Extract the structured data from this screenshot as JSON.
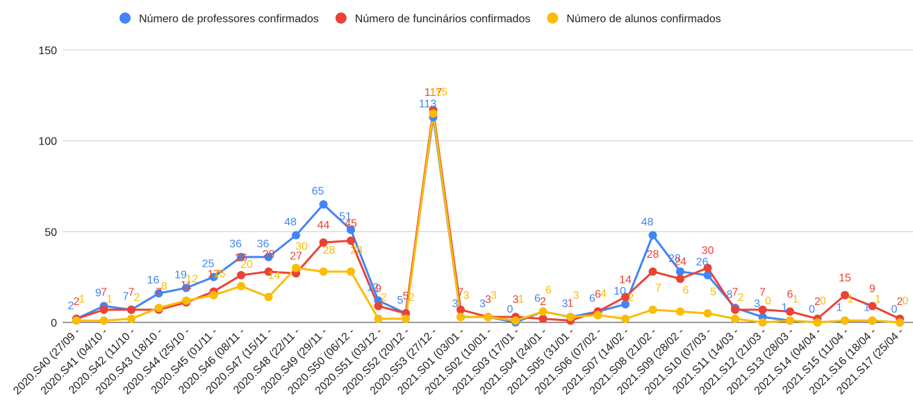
{
  "chart_data": {
    "type": "line",
    "categories": [
      "2020.S40 (27/09 -",
      "2020.S41 (04/10 -",
      "2020.S42 (11/10 -",
      "2020.S43 (18/10 -",
      "2020.S44 (25/10 -",
      "2020.S45 (01/11 -",
      "2020.S46 (08/11 -",
      "2020.S47 (15/11 -",
      "2020.S48 (22/11 -",
      "2020.S49 (29/11 -",
      "2020.S50 (06/12 -",
      "2020.S51 (03/12 -",
      "2020.S52 (20/12 -",
      "2020.S53 (27/12 -",
      "2021.S01 (03/01 -",
      "2021.S02 (10/01 -",
      "2021.S03 (17/01 -",
      "2021.S04 (24/01 -",
      "2021.S05 (31/01 -",
      "2021.S06 (07/02 -",
      "2021.S07 (14/02 -",
      "2021.S08 (21/02 -",
      "2021.S09 (28/02 -",
      "2021.S10 (07/03 -",
      "2021.S11 (14/03 -",
      "2021.S12 (21/03 -",
      "2021.S13 (28/03 -",
      "2021.S14 (04/04 -",
      "2021.S15 (11/04 -",
      "2021.S16 (18/04 -",
      "2021.S17 (25/04 -"
    ],
    "series": [
      {
        "name": "Número de professores confirmados",
        "color": "#4285f4",
        "values": [
          2,
          9,
          7,
          16,
          19,
          25,
          36,
          36,
          48,
          65,
          51,
          12,
          5,
          113,
          3,
          3,
          0,
          6,
          3,
          6,
          10,
          48,
          28,
          26,
          8,
          3,
          1,
          0,
          1,
          1,
          0
        ]
      },
      {
        "name": "Número de funcinários confirmados",
        "color": "#ea4335",
        "values": [
          2,
          7,
          7,
          7,
          11,
          17,
          26,
          28,
          27,
          44,
          45,
          9,
          5,
          117,
          7,
          3,
          3,
          2,
          1,
          6,
          14,
          28,
          24,
          30,
          7,
          7,
          6,
          2,
          15,
          9,
          2
        ]
      },
      {
        "name": "Número de alunos confirmados",
        "color": "#fbbc04",
        "values": [
          1,
          1,
          2,
          8,
          12,
          15,
          20,
          14,
          30,
          28,
          28,
          2,
          2,
          115,
          3,
          3,
          1,
          6,
          3,
          4,
          2,
          7,
          6,
          5,
          2,
          0,
          1,
          0,
          1,
          1,
          0
        ]
      }
    ],
    "ylim": [
      0,
      150
    ],
    "yticks": [
      0,
      50,
      100,
      150
    ],
    "grid": true,
    "legend": "top"
  }
}
